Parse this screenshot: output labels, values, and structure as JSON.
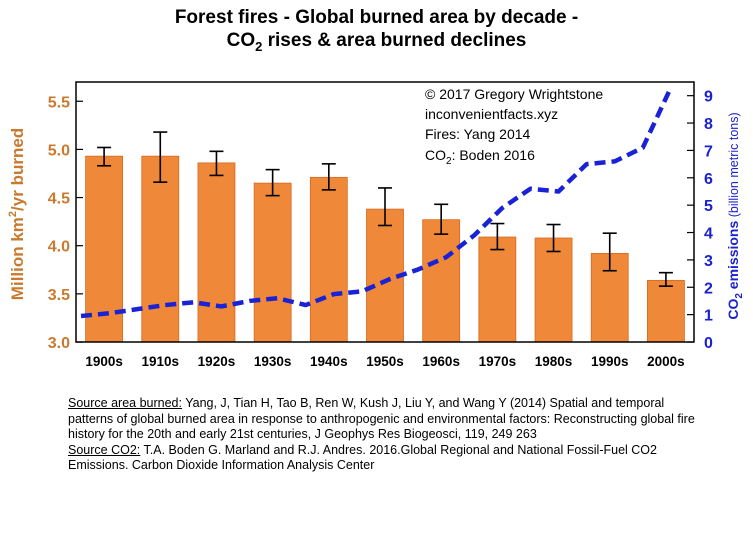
{
  "title": {
    "line1": "Forest fires - Global burned area by decade -",
    "line2_prefix": "CO",
    "line2_sub": "2",
    "line2_rest": " rises & area burned declines"
  },
  "chart_data": {
    "type": "bar",
    "title": "Forest fires - Global burned area by decade - CO2 rises & area burned declines",
    "categories": [
      "1900s",
      "1910s",
      "1920s",
      "1930s",
      "1940s",
      "1950s",
      "1960s",
      "1970s",
      "1980s",
      "1990s",
      "2000s"
    ],
    "series": [
      {
        "name": "Global burned area",
        "type": "bar",
        "axis": "left",
        "values": [
          4.93,
          4.93,
          4.86,
          4.65,
          4.71,
          4.38,
          4.27,
          4.09,
          4.08,
          3.92,
          3.64
        ],
        "error_low": [
          4.83,
          4.66,
          4.73,
          4.52,
          4.58,
          4.21,
          4.12,
          3.96,
          3.94,
          3.74,
          3.58
        ],
        "error_high": [
          5.02,
          5.18,
          4.98,
          4.79,
          4.85,
          4.6,
          4.43,
          4.23,
          4.22,
          4.13,
          3.72
        ]
      },
      {
        "name": "CO2 emissions",
        "type": "line",
        "axis": "right",
        "x": [
          0,
          0.5,
          1,
          1.5,
          2,
          2.5,
          3,
          3.5,
          4,
          4.5,
          5,
          5.5,
          6,
          6.5,
          7,
          7.5,
          8,
          8.5,
          9,
          9.5,
          10,
          10.5
        ],
        "values": [
          0.95,
          1.05,
          1.2,
          1.35,
          1.45,
          1.3,
          1.5,
          1.6,
          1.35,
          1.75,
          1.85,
          2.3,
          2.65,
          3.1,
          3.9,
          4.9,
          5.6,
          5.5,
          6.5,
          6.6,
          7.1,
          9.3
        ]
      }
    ],
    "ylabel": "Million km²/yr burned",
    "ylabel_left_prefix": "Million km",
    "ylabel_left_sup": "2",
    "ylabel_left_suffix": "/yr burned",
    "ylabel_right_prefix": "CO",
    "ylabel_right_sub": "2",
    "ylabel_right_bold": " emissions",
    "ylabel_right_normal": " (billion metric tons)",
    "ylim": [
      3.0,
      5.7
    ],
    "y2lim": [
      0,
      9.5
    ],
    "yticks": [
      "3.0",
      "3.5",
      "4.0",
      "4.5",
      "5.0",
      "5.5"
    ],
    "y2ticks": [
      "0",
      "1",
      "2",
      "3",
      "4",
      "5",
      "6",
      "7",
      "8",
      "9"
    ],
    "grid": false,
    "annotations": {
      "copyright": "© 2017 Gregory Wrightstone",
      "website": "inconvenientfacts.xyz",
      "fires_source": "Fires: Yang 2014",
      "co2_prefix": "CO",
      "co2_sub": "2",
      "co2_rest": ": Boden 2016"
    }
  },
  "sources": {
    "area_label": "Source area burned:",
    "area_text": " Yang, J, Tian H, Tao B, Ren W, Kush J, Liu Y, and Wang Y (2014) Spatial and temporal patterns of global burned area in response to anthropogenic and environmental factors: Reconstructing global fire history for the 20th and early 21st centuries, J Geophys Res Biogeosci, 119, 249 263",
    "co2_label": "Source CO2:",
    "co2_text": " T.A. Boden G. Marland and R.J. Andres. 2016.Global Regional and National Fossil-Fuel CO2 Emissions. Carbon Dioxide Information Analysis Center"
  },
  "colors": {
    "bar_fill": "#F0883A",
    "bar_stroke": "#D46A1E",
    "left_axis": "#C97A2E",
    "right_axis": "#1A22CC",
    "co2_line": "#1A22D6",
    "text": "#000000"
  }
}
